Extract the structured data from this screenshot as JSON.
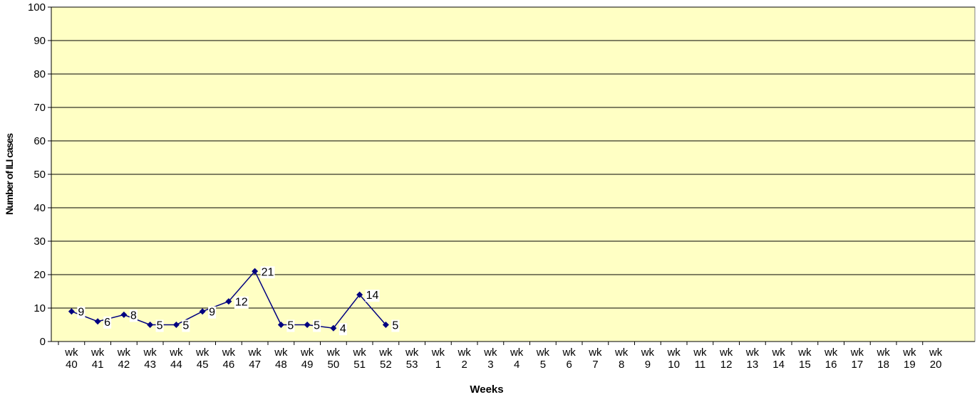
{
  "chart_data": {
    "type": "line",
    "x_label": "Weeks",
    "y_label": "Number of ILI cases",
    "categories": [
      "wk 40",
      "wk 41",
      "wk 42",
      "wk 43",
      "wk 44",
      "wk 45",
      "wk 46",
      "wk 47",
      "wk 48",
      "wk 49",
      "wk 50",
      "wk 51",
      "wk 52",
      "wk 53",
      "wk 1",
      "wk 2",
      "wk 3",
      "wk 4",
      "wk 5",
      "wk 6",
      "wk 7",
      "wk 8",
      "wk 9",
      "wk 10",
      "wk 11",
      "wk 12",
      "wk 13",
      "wk 14",
      "wk 15",
      "wk 16",
      "wk 17",
      "wk 18",
      "wk 19",
      "wk 20"
    ],
    "series": [
      {
        "color": "#000080",
        "values": [
          9,
          6,
          8,
          5,
          5,
          9,
          12,
          21,
          5,
          5,
          4,
          14,
          5,
          null,
          null,
          null,
          null,
          null,
          null,
          null,
          null,
          null,
          null,
          null,
          null,
          null,
          null,
          null,
          null,
          null,
          null,
          null,
          null,
          null
        ]
      }
    ],
    "ylim": [
      0,
      100
    ],
    "yticks": [
      0,
      10,
      20,
      30,
      40,
      50,
      60,
      70,
      80,
      90,
      100
    ],
    "grid": true,
    "background": "#ffffc4"
  }
}
